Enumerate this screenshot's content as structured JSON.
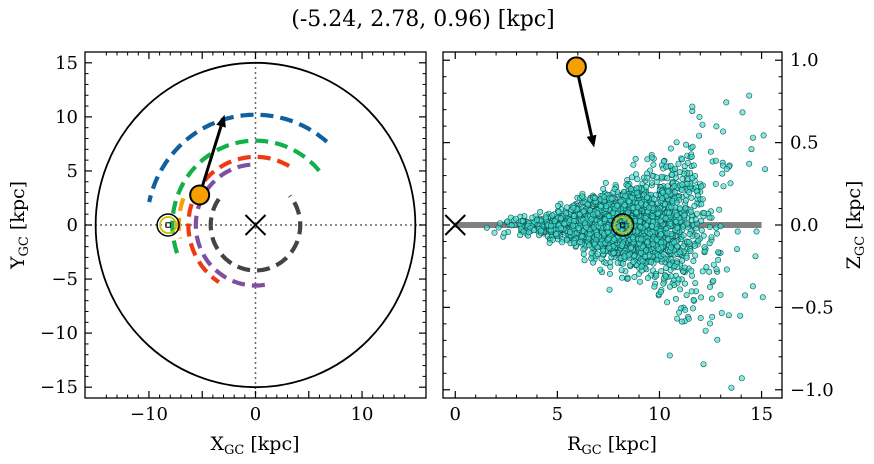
{
  "title": "(-5.24, 2.78, 0.96) [kpc]",
  "chart_data": [
    {
      "type": "line",
      "panel": "left",
      "xlabel_main": "X",
      "xlabel_sub": "GC",
      "xlabel_unit": " [kpc]",
      "ylabel_main": "Y",
      "ylabel_sub": "GC",
      "ylabel_unit": " [kpc]",
      "xlim": [
        -16,
        16
      ],
      "ylim": [
        -16,
        16
      ],
      "xticks": [
        -10,
        0,
        10
      ],
      "yticks": [
        -15,
        -10,
        -5,
        0,
        5,
        10,
        15
      ],
      "xtick_labels": [
        "−10",
        "0",
        "10"
      ],
      "ytick_labels": [
        "−15",
        "−10",
        "−5",
        "0",
        "5",
        "10",
        "15"
      ],
      "boundary_circle_radius": 15,
      "galactic_center": [
        0,
        0
      ],
      "sun_position": [
        -8.2,
        0.0
      ],
      "star_position": [
        -5.24,
        2.78
      ],
      "velocity_arrow_end": [
        -2.9,
        10.2
      ],
      "arms": [
        {
          "radius": 10.2,
          "theta_start_deg": 49,
          "theta_end_deg": 168,
          "color": "#1060a0"
        },
        {
          "radius": 7.8,
          "theta_start_deg": 40,
          "theta_end_deg": 200,
          "color": "#12b04a"
        },
        {
          "radius": 6.3,
          "theta_start_deg": 60,
          "theta_end_deg": 237,
          "color": "#ee3a12"
        },
        {
          "radius": 7.2,
          "theta_start_deg": 160,
          "theta_end_deg": 190,
          "color": "#f5a000"
        },
        {
          "radius": 5.6,
          "theta_start_deg": 95,
          "theta_end_deg": 284,
          "color": "#7f4fa0"
        },
        {
          "radius": 4.2,
          "theta_start_deg": 145,
          "theta_end_deg": 400,
          "color": "#444444"
        }
      ]
    },
    {
      "type": "scatter",
      "panel": "right",
      "xlabel_main": "R",
      "xlabel_sub": "GC",
      "xlabel_unit": " [kpc]",
      "ylabel_main": "Z",
      "ylabel_sub": "GC",
      "ylabel_unit": " [kpc]",
      "xlim": [
        -0.6,
        16
      ],
      "ylim": [
        -1.05,
        1.05
      ],
      "xticks": [
        0,
        5,
        10,
        15
      ],
      "yticks": [
        -1.0,
        -0.5,
        0.0,
        0.5,
        1.0
      ],
      "xtick_labels": [
        "0",
        "5",
        "10",
        "15"
      ],
      "ytick_labels": [
        "−1.0",
        "−0.5",
        "0.0",
        "0.5",
        "1.0"
      ],
      "plane_line": {
        "x": [
          0,
          15
        ],
        "y": 0.0,
        "color": "#808080"
      },
      "galactic_center": [
        0,
        0
      ],
      "sun_position": [
        8.2,
        0.0
      ],
      "star_position": [
        5.93,
        0.96
      ],
      "velocity_arrow_end": [
        6.8,
        0.47
      ],
      "cloud": {
        "n": 2600,
        "center_R": 8.2,
        "R_spread": 2.0,
        "R_min": 1.5,
        "R_max": 15.5,
        "z_sigma_base": 0.03,
        "z_sigma_growth": 0.022,
        "color": "#40e0d0",
        "edge": "#105050"
      }
    }
  ]
}
